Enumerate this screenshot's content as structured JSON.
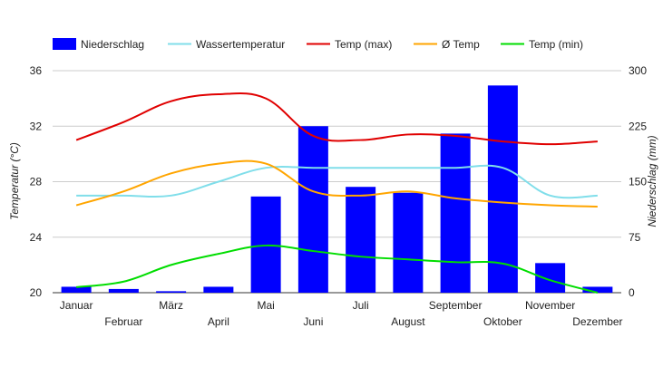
{
  "chart_data": {
    "type": "bar+line",
    "categories": [
      "Januar",
      "Februar",
      "März",
      "April",
      "Mai",
      "Juni",
      "Juli",
      "August",
      "September",
      "Oktober",
      "November",
      "Dezember"
    ],
    "y_left": {
      "label": "Temperatur (°C)",
      "range": [
        20,
        36
      ],
      "ticks": [
        20,
        24,
        28,
        32,
        36
      ]
    },
    "y_right": {
      "label": "Niederschlag (mm)",
      "range": [
        0,
        300
      ],
      "ticks": [
        0,
        75,
        150,
        225,
        300
      ]
    },
    "grid": true,
    "legend_position": "top",
    "bar_series": {
      "name": "Niederschlag",
      "axis": "right",
      "color": "#0000ff",
      "values": [
        8,
        5,
        2,
        8,
        130,
        225,
        143,
        135,
        215,
        280,
        40,
        8
      ]
    },
    "line_series": [
      {
        "name": "Wassertemperatur",
        "axis": "left",
        "color": "#80deea",
        "values": [
          27.0,
          27.0,
          27.0,
          28.0,
          29.0,
          29.0,
          29.0,
          29.0,
          29.0,
          29.0,
          27.0,
          27.0
        ]
      },
      {
        "name": "Temp (max)",
        "axis": "left",
        "color": "#e00000",
        "values": [
          31.0,
          32.3,
          33.8,
          34.3,
          34.0,
          31.3,
          31.0,
          31.4,
          31.3,
          30.9,
          30.7,
          30.9
        ]
      },
      {
        "name": "Ø Temp",
        "axis": "left",
        "color": "#ffa500",
        "values": [
          26.3,
          27.3,
          28.6,
          29.3,
          29.3,
          27.3,
          27.0,
          27.3,
          26.8,
          26.5,
          26.3,
          26.2
        ]
      },
      {
        "name": "Temp (min)",
        "axis": "left",
        "color": "#00dd00",
        "values": [
          20.4,
          20.8,
          22.0,
          22.8,
          23.4,
          23.0,
          22.6,
          22.4,
          22.2,
          22.1,
          20.9,
          20.0
        ]
      }
    ]
  }
}
